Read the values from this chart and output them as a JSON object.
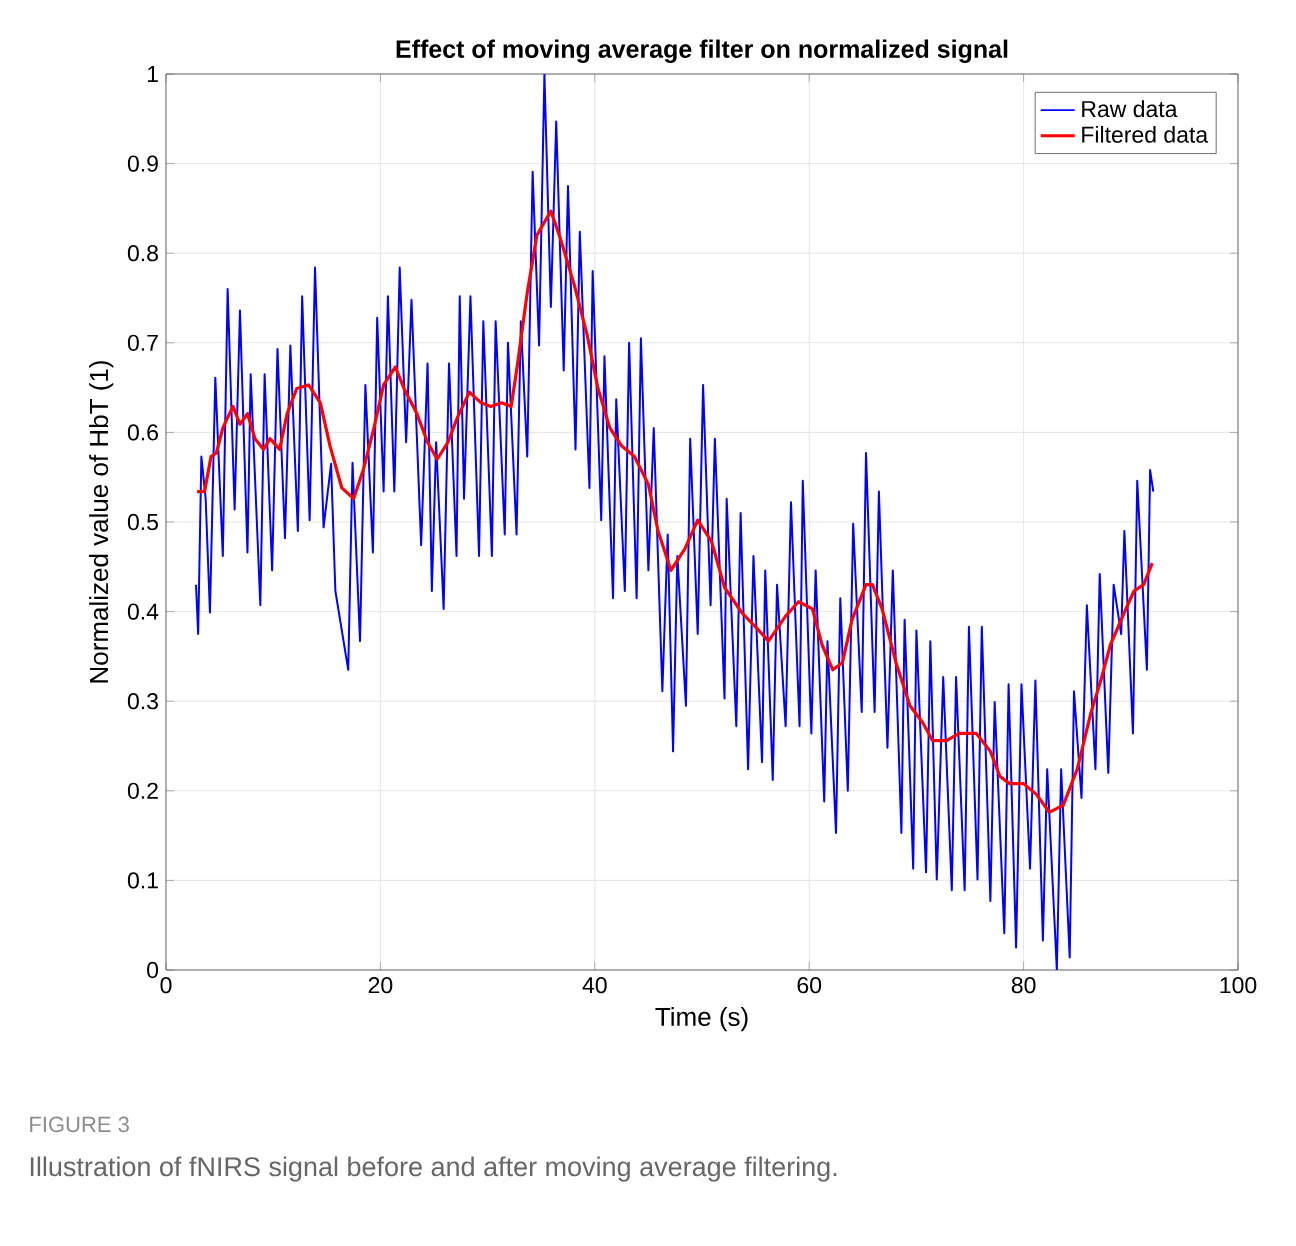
{
  "chart_data": {
    "type": "line",
    "title": "Effect of moving average filter on normalized signal",
    "xlabel": "Time (s)",
    "ylabel": "Normalized value of HbT (1)",
    "xlim": [
      0,
      100
    ],
    "xticks": [
      0,
      20,
      40,
      60,
      80,
      100
    ],
    "ylim": [
      0,
      1
    ],
    "yticks": [
      0,
      0.1,
      0.2,
      0.3,
      0.4,
      0.5,
      0.6,
      0.7,
      0.8,
      0.9,
      1
    ],
    "grid": true,
    "legend": "top right",
    "marker": "none",
    "line_style": "solid",
    "annotations": [
      "FIGURE 3",
      "Illustration of fNIRS signal before and after moving average filtering."
    ],
    "series": [
      {
        "name": "Raw data",
        "color": "#0000ff",
        "x": [
          2.8,
          3.0,
          3.3,
          3.7,
          4.1,
          4.6,
          5.3,
          5.75,
          6.4,
          6.9,
          7.6,
          7.9,
          8.8,
          9.2,
          9.9,
          10.4,
          11.1,
          11.6,
          12.3,
          12.7,
          13.4,
          13.9,
          14.7,
          15.4,
          15.8,
          17.0,
          17.4,
          18.1,
          18.6,
          19.3,
          19.7,
          20.3,
          20.7,
          21.3,
          21.8,
          22.4,
          22.9,
          23.8,
          24.4,
          24.8,
          25.2,
          25.9,
          26.4,
          27.1,
          27.4,
          27.8,
          28.4,
          29.2,
          29.6,
          30.4,
          30.75,
          31.6,
          31.9,
          32.7,
          33.1,
          33.7,
          34.2,
          34.8,
          35.3,
          35.9,
          36.4,
          37.1,
          37.5,
          38.2,
          38.6,
          39.5,
          39.8,
          40.6,
          40.9,
          41.7,
          42.0,
          42.8,
          43.2,
          43.9,
          44.3,
          45.0,
          45.5,
          46.3,
          46.8,
          47.3,
          47.7,
          48.5,
          48.9,
          49.6,
          50.1,
          50.8,
          51.2,
          52.1,
          52.3,
          53.2,
          53.6,
          54.3,
          54.8,
          55.6,
          55.9,
          56.6,
          57.0,
          57.8,
          58.3,
          59.1,
          59.4,
          60.2,
          60.6,
          61.4,
          61.7,
          62.5,
          62.9,
          63.6,
          64.1,
          64.9,
          65.3,
          66.1,
          66.5,
          67.3,
          67.8,
          68.6,
          68.9,
          69.7,
          70.0,
          70.9,
          71.3,
          71.9,
          72.5,
          73.3,
          73.7,
          74.5,
          74.9,
          75.7,
          76.1,
          76.9,
          77.3,
          78.2,
          78.6,
          79.3,
          79.8,
          80.6,
          81.1,
          81.8,
          82.2,
          83.1,
          83.5,
          84.3,
          84.7,
          85.4,
          85.9,
          86.7,
          87.1,
          87.9,
          88.4,
          89.1,
          89.4,
          90.2,
          90.6,
          91.5,
          91.8,
          92.1
        ],
        "values": [
          0.43,
          0.375,
          0.573,
          0.526,
          0.399,
          0.661,
          0.462,
          0.76,
          0.514,
          0.736,
          0.466,
          0.665,
          0.407,
          0.665,
          0.446,
          0.693,
          0.482,
          0.697,
          0.49,
          0.752,
          0.502,
          0.784,
          0.494,
          0.565,
          0.423,
          0.335,
          0.566,
          0.367,
          0.653,
          0.466,
          0.728,
          0.534,
          0.752,
          0.534,
          0.784,
          0.589,
          0.748,
          0.474,
          0.677,
          0.423,
          0.589,
          0.403,
          0.677,
          0.462,
          0.752,
          0.526,
          0.752,
          0.462,
          0.724,
          0.462,
          0.724,
          0.486,
          0.7,
          0.486,
          0.724,
          0.573,
          0.891,
          0.697,
          1.0,
          0.74,
          0.947,
          0.669,
          0.875,
          0.581,
          0.824,
          0.538,
          0.78,
          0.502,
          0.685,
          0.415,
          0.637,
          0.423,
          0.7,
          0.415,
          0.705,
          0.446,
          0.605,
          0.311,
          0.486,
          0.244,
          0.462,
          0.295,
          0.593,
          0.375,
          0.653,
          0.407,
          0.593,
          0.303,
          0.526,
          0.272,
          0.51,
          0.224,
          0.462,
          0.232,
          0.446,
          0.212,
          0.43,
          0.272,
          0.522,
          0.272,
          0.546,
          0.264,
          0.446,
          0.188,
          0.367,
          0.153,
          0.415,
          0.2,
          0.498,
          0.288,
          0.577,
          0.288,
          0.534,
          0.248,
          0.446,
          0.153,
          0.391,
          0.113,
          0.379,
          0.109,
          0.367,
          0.101,
          0.327,
          0.089,
          0.327,
          0.089,
          0.383,
          0.101,
          0.383,
          0.077,
          0.299,
          0.041,
          0.319,
          0.025,
          0.319,
          0.113,
          0.323,
          0.033,
          0.224,
          0.0,
          0.224,
          0.014,
          0.311,
          0.192,
          0.407,
          0.224,
          0.442,
          0.22,
          0.43,
          0.375,
          0.49,
          0.264,
          0.546,
          0.335,
          0.558,
          0.534
        ]
      },
      {
        "name": "Filtered data",
        "color": "#ff0000",
        "x": [
          2.9,
          3.6,
          4.2,
          4.7,
          5.3,
          6.25,
          6.9,
          7.6,
          8.3,
          9.1,
          9.7,
          10.6,
          11.3,
          12.2,
          13.3,
          14.4,
          15.3,
          16.4,
          17.5,
          18.4,
          19.4,
          20.3,
          21.4,
          22.2,
          23.4,
          24.4,
          25.3,
          26.3,
          27.2,
          28.3,
          29.4,
          30.3,
          31.3,
          32.2,
          32.8,
          33.7,
          34.6,
          35.9,
          36.8,
          38.1,
          39.3,
          40.3,
          41.4,
          42.5,
          43.7,
          45.0,
          45.9,
          47.1,
          48.4,
          49.6,
          50.9,
          52.1,
          53.7,
          55.3,
          56.2,
          57.8,
          59.0,
          60.3,
          61.2,
          62.2,
          63.1,
          64.0,
          65.3,
          65.9,
          66.8,
          68.1,
          69.4,
          70.6,
          71.5,
          72.8,
          74.0,
          75.6,
          76.9,
          77.8,
          78.7,
          80.0,
          81.2,
          82.4,
          83.7,
          85.0,
          86.3,
          87.2,
          88.1,
          89.4,
          90.3,
          91.2,
          92.0
        ],
        "values": [
          0.534,
          0.534,
          0.573,
          0.577,
          0.605,
          0.629,
          0.609,
          0.621,
          0.593,
          0.581,
          0.593,
          0.581,
          0.621,
          0.649,
          0.653,
          0.633,
          0.585,
          0.538,
          0.526,
          0.558,
          0.605,
          0.653,
          0.673,
          0.649,
          0.621,
          0.589,
          0.57,
          0.589,
          0.617,
          0.645,
          0.633,
          0.629,
          0.633,
          0.629,
          0.677,
          0.756,
          0.82,
          0.847,
          0.816,
          0.764,
          0.708,
          0.649,
          0.605,
          0.585,
          0.573,
          0.542,
          0.49,
          0.446,
          0.47,
          0.502,
          0.478,
          0.427,
          0.399,
          0.379,
          0.367,
          0.395,
          0.411,
          0.403,
          0.363,
          0.335,
          0.343,
          0.391,
          0.43,
          0.43,
          0.403,
          0.343,
          0.295,
          0.276,
          0.256,
          0.256,
          0.264,
          0.264,
          0.244,
          0.216,
          0.208,
          0.208,
          0.196,
          0.176,
          0.184,
          0.224,
          0.288,
          0.323,
          0.363,
          0.399,
          0.423,
          0.43,
          0.454
        ]
      }
    ]
  }
}
